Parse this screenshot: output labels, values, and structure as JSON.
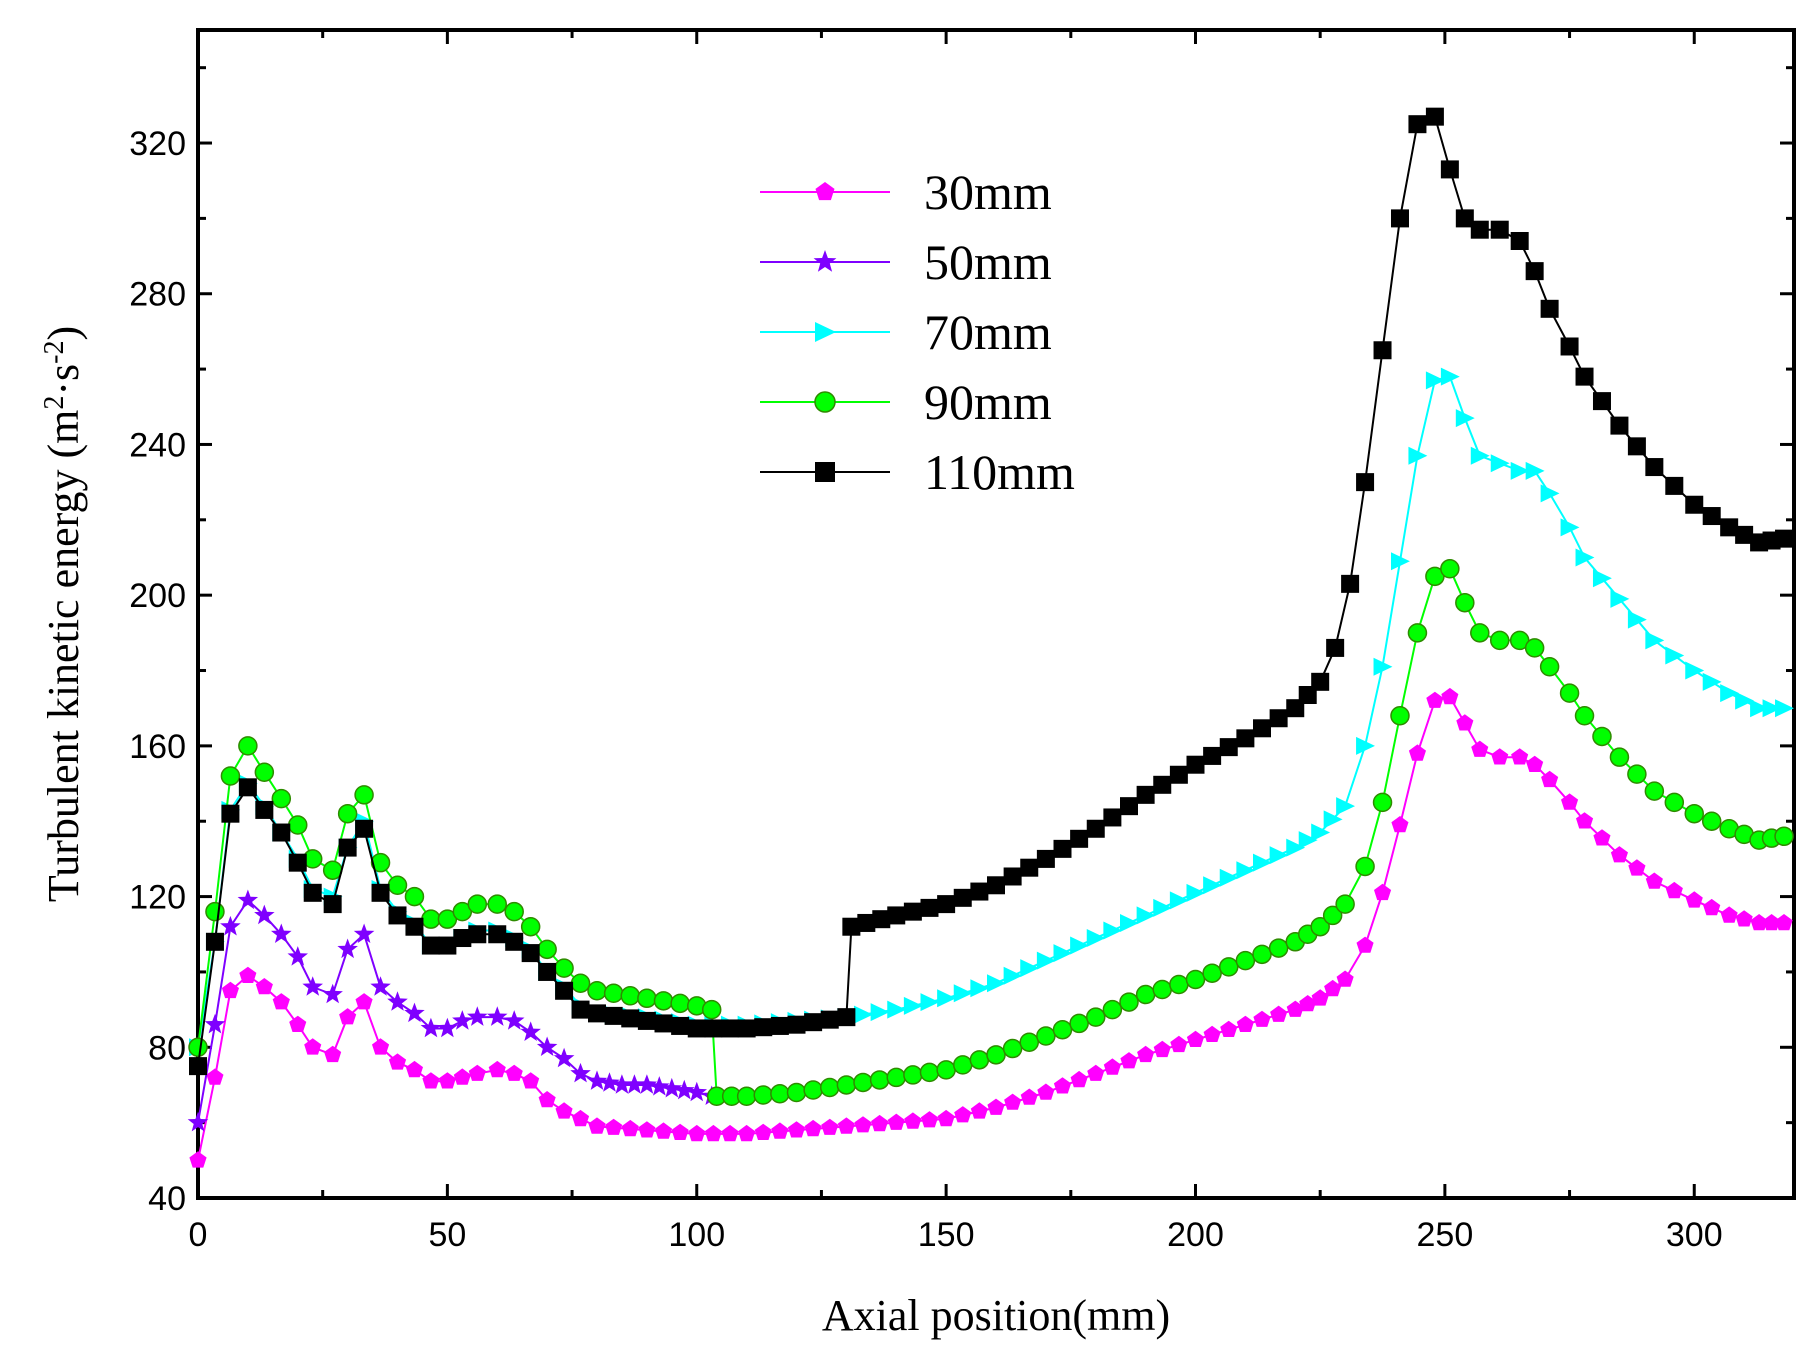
{
  "chart_data": {
    "type": "line",
    "title": "",
    "xlabel": "Axial position(mm)",
    "ylabel_prefix": "Turbulent kinetic energy (m",
    "ylabel_sup1": "2",
    "ylabel_mid": "·s",
    "ylabel_sup2": "-2",
    "ylabel_suffix": ")",
    "xlim": [
      0,
      320
    ],
    "ylim": [
      40,
      350
    ],
    "xticks": [
      0,
      50,
      100,
      150,
      200,
      250,
      300
    ],
    "yticks": [
      40,
      80,
      120,
      160,
      200,
      240,
      280,
      320
    ],
    "legend_position": "top-center",
    "series": [
      {
        "name": "30mm",
        "color": "#ff00ff",
        "marker": "pentagon",
        "points": [
          [
            0,
            50
          ],
          [
            3.4,
            72
          ],
          [
            6.5,
            95
          ],
          [
            10,
            99
          ],
          [
            13.3,
            96
          ],
          [
            16.7,
            92
          ],
          [
            20,
            86
          ],
          [
            23,
            80
          ],
          [
            27,
            78
          ],
          [
            30,
            88
          ],
          [
            33.3,
            92
          ],
          [
            36.6,
            80
          ],
          [
            40,
            76
          ],
          [
            43.4,
            74
          ],
          [
            46.7,
            71
          ],
          [
            50,
            71
          ],
          [
            53,
            72
          ],
          [
            56,
            73
          ],
          [
            60,
            74
          ],
          [
            63.4,
            73
          ],
          [
            66.7,
            71
          ],
          [
            70,
            66
          ],
          [
            73.4,
            63
          ],
          [
            76.7,
            61
          ],
          [
            80,
            59
          ],
          [
            90,
            58
          ],
          [
            100,
            57
          ],
          [
            110,
            57
          ],
          [
            120,
            58
          ],
          [
            130,
            59
          ],
          [
            140,
            60
          ],
          [
            150,
            61
          ],
          [
            160,
            64
          ],
          [
            170,
            68
          ],
          [
            180,
            73
          ],
          [
            190,
            78
          ],
          [
            200,
            82
          ],
          [
            210,
            86
          ],
          [
            220,
            90
          ],
          [
            225,
            93
          ],
          [
            230,
            98
          ],
          [
            234,
            107
          ],
          [
            237.5,
            121
          ],
          [
            241,
            139
          ],
          [
            244.5,
            158
          ],
          [
            248,
            172
          ],
          [
            251,
            173
          ],
          [
            254,
            166
          ],
          [
            257,
            159
          ],
          [
            261,
            157
          ],
          [
            265,
            157
          ],
          [
            268,
            155
          ],
          [
            271,
            151
          ],
          [
            275,
            145
          ],
          [
            278,
            140
          ],
          [
            285,
            131
          ],
          [
            292,
            124
          ],
          [
            300,
            119
          ],
          [
            307,
            115
          ],
          [
            313,
            113
          ],
          [
            318,
            113
          ]
        ]
      },
      {
        "name": "50mm",
        "color": "#7f00ff",
        "marker": "star",
        "points": [
          [
            0,
            60
          ],
          [
            3.4,
            86
          ],
          [
            6.5,
            112
          ],
          [
            10,
            119
          ],
          [
            13.3,
            115
          ],
          [
            16.7,
            110
          ],
          [
            20,
            104
          ],
          [
            23,
            96
          ],
          [
            27,
            94
          ],
          [
            30,
            106
          ],
          [
            33.3,
            110
          ],
          [
            36.6,
            96
          ],
          [
            40,
            92
          ],
          [
            43.4,
            89
          ],
          [
            46.7,
            85
          ],
          [
            50,
            85
          ],
          [
            53,
            87
          ],
          [
            56,
            88
          ],
          [
            60,
            88
          ],
          [
            63.4,
            87
          ],
          [
            66.7,
            84
          ],
          [
            70,
            80
          ],
          [
            73.4,
            77
          ],
          [
            76.7,
            73
          ],
          [
            80,
            71
          ],
          [
            85,
            70
          ],
          [
            90,
            70
          ],
          [
            95,
            69
          ],
          [
            100,
            68
          ],
          [
            103,
            67
          ]
        ]
      },
      {
        "name": "70mm",
        "color": "#00ffff",
        "marker": "triangle-right",
        "points": [
          [
            0,
            80
          ],
          [
            3.4,
            108
          ],
          [
            6.5,
            143
          ],
          [
            10,
            150
          ],
          [
            13.3,
            144
          ],
          [
            16.7,
            137
          ],
          [
            20,
            130
          ],
          [
            23,
            122
          ],
          [
            27,
            120
          ],
          [
            30,
            133
          ],
          [
            33.3,
            140
          ],
          [
            36.6,
            122
          ],
          [
            40,
            116
          ],
          [
            43.4,
            113
          ],
          [
            46.7,
            107
          ],
          [
            50,
            107
          ],
          [
            53,
            109
          ],
          [
            56,
            111
          ],
          [
            60,
            111
          ],
          [
            63.4,
            109
          ],
          [
            66.7,
            106
          ],
          [
            70,
            100
          ],
          [
            73.4,
            96
          ],
          [
            76.7,
            91
          ],
          [
            80,
            89
          ],
          [
            90,
            88
          ],
          [
            100,
            86
          ],
          [
            110,
            86
          ],
          [
            120,
            87
          ],
          [
            130,
            88
          ],
          [
            140,
            90
          ],
          [
            150,
            93
          ],
          [
            160,
            97
          ],
          [
            170,
            103
          ],
          [
            180,
            109
          ],
          [
            190,
            115
          ],
          [
            200,
            121
          ],
          [
            210,
            127
          ],
          [
            220,
            133
          ],
          [
            225,
            137
          ],
          [
            230,
            144
          ],
          [
            234,
            160
          ],
          [
            237.5,
            181
          ],
          [
            241,
            209
          ],
          [
            244.5,
            237
          ],
          [
            248,
            257
          ],
          [
            251,
            258
          ],
          [
            254,
            247
          ],
          [
            257,
            237
          ],
          [
            261,
            235
          ],
          [
            265,
            233
          ],
          [
            268,
            233
          ],
          [
            271,
            227
          ],
          [
            275,
            218
          ],
          [
            278,
            210
          ],
          [
            285,
            199
          ],
          [
            292,
            188
          ],
          [
            300,
            180
          ],
          [
            307,
            174
          ],
          [
            313,
            170
          ],
          [
            318,
            170
          ]
        ]
      },
      {
        "name": "90mm",
        "color": "#00ff00",
        "marker": "circle",
        "points": [
          [
            0,
            80
          ],
          [
            3.4,
            116
          ],
          [
            6.5,
            152
          ],
          [
            10,
            160
          ],
          [
            13.3,
            153
          ],
          [
            16.7,
            146
          ],
          [
            20,
            139
          ],
          [
            23,
            130
          ],
          [
            27,
            127
          ],
          [
            30,
            142
          ],
          [
            33.3,
            147
          ],
          [
            36.6,
            129
          ],
          [
            40,
            123
          ],
          [
            43.4,
            120
          ],
          [
            46.7,
            114
          ],
          [
            50,
            114
          ],
          [
            53,
            116
          ],
          [
            56,
            118
          ],
          [
            60,
            118
          ],
          [
            63.4,
            116
          ],
          [
            66.7,
            112
          ],
          [
            70,
            106
          ],
          [
            73.4,
            101
          ],
          [
            76.7,
            97
          ],
          [
            80,
            95
          ],
          [
            90,
            93
          ],
          [
            100,
            91
          ],
          [
            103,
            90
          ],
          [
            104,
            67
          ],
          [
            110,
            67
          ],
          [
            120,
            68
          ],
          [
            130,
            70
          ],
          [
            140,
            72
          ],
          [
            150,
            74
          ],
          [
            160,
            78
          ],
          [
            170,
            83
          ],
          [
            180,
            88
          ],
          [
            190,
            94
          ],
          [
            200,
            98
          ],
          [
            210,
            103
          ],
          [
            220,
            108
          ],
          [
            225,
            112
          ],
          [
            230,
            118
          ],
          [
            234,
            128
          ],
          [
            237.5,
            145
          ],
          [
            241,
            168
          ],
          [
            244.5,
            190
          ],
          [
            248,
            205
          ],
          [
            251,
            207
          ],
          [
            254,
            198
          ],
          [
            257,
            190
          ],
          [
            261,
            188
          ],
          [
            265,
            188
          ],
          [
            268,
            186
          ],
          [
            271,
            181
          ],
          [
            275,
            174
          ],
          [
            278,
            168
          ],
          [
            285,
            157
          ],
          [
            292,
            148
          ],
          [
            300,
            142
          ],
          [
            307,
            138
          ],
          [
            313,
            135
          ],
          [
            318,
            136
          ]
        ]
      },
      {
        "name": "110mm",
        "color": "#000000",
        "marker": "square",
        "points": [
          [
            0,
            75
          ],
          [
            3.4,
            108
          ],
          [
            6.5,
            142
          ],
          [
            10,
            149
          ],
          [
            13.3,
            143
          ],
          [
            16.7,
            137
          ],
          [
            20,
            129
          ],
          [
            23,
            121
          ],
          [
            27,
            118
          ],
          [
            30,
            133
          ],
          [
            33.3,
            138
          ],
          [
            36.6,
            121
          ],
          [
            40,
            115
          ],
          [
            43.4,
            112
          ],
          [
            46.7,
            107
          ],
          [
            50,
            107
          ],
          [
            53,
            109
          ],
          [
            56,
            110
          ],
          [
            60,
            110
          ],
          [
            63.4,
            108
          ],
          [
            66.7,
            105
          ],
          [
            70,
            100
          ],
          [
            73.4,
            95
          ],
          [
            76.7,
            90
          ],
          [
            80,
            89
          ],
          [
            90,
            87
          ],
          [
            100,
            85
          ],
          [
            110,
            85
          ],
          [
            120,
            86
          ],
          [
            130,
            88
          ],
          [
            131,
            112
          ],
          [
            140,
            115
          ],
          [
            150,
            118
          ],
          [
            160,
            123
          ],
          [
            170,
            130
          ],
          [
            180,
            138
          ],
          [
            190,
            147
          ],
          [
            200,
            155
          ],
          [
            210,
            162
          ],
          [
            220,
            170
          ],
          [
            225,
            177
          ],
          [
            228,
            186
          ],
          [
            231,
            203
          ],
          [
            234,
            230
          ],
          [
            237.5,
            265
          ],
          [
            241,
            300
          ],
          [
            244.5,
            325
          ],
          [
            248,
            327
          ],
          [
            251,
            313
          ],
          [
            254,
            300
          ],
          [
            257,
            297
          ],
          [
            261,
            297
          ],
          [
            265,
            294
          ],
          [
            268,
            286
          ],
          [
            271,
            276
          ],
          [
            275,
            266
          ],
          [
            278,
            258
          ],
          [
            285,
            245
          ],
          [
            292,
            234
          ],
          [
            300,
            224
          ],
          [
            307,
            218
          ],
          [
            313,
            214
          ],
          [
            318,
            215
          ]
        ]
      }
    ]
  }
}
